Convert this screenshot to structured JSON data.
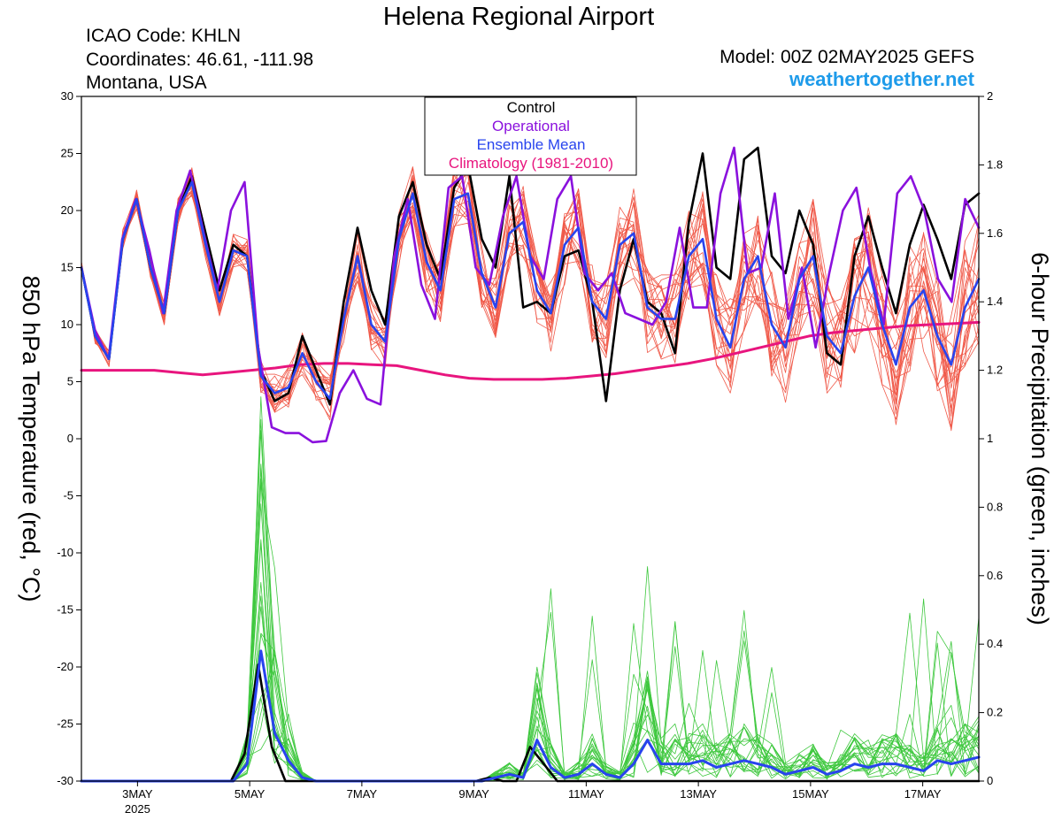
{
  "chart_data": {
    "type": "line",
    "title": "Helena Regional Airport",
    "info_left": [
      "ICAO Code: KHLN",
      "Coordinates: 46.61, -111.98",
      "Montana, USA"
    ],
    "info_right": [
      "Model: 00Z 02MAY2025 GEFS"
    ],
    "brand": "weathertogether.net",
    "y_left_label": "850 hPa Temperature (red, °C)",
    "y_right_label": "6-hour Precipitation (green, inches)",
    "y_left_range": [
      -30,
      30
    ],
    "y_right_range": [
      0,
      2
    ],
    "y_left_ticks": [
      "30",
      "25",
      "20",
      "15",
      "10",
      "5",
      "0",
      "-5",
      "-10",
      "-15",
      "-20",
      "-25",
      "-30"
    ],
    "y_right_ticks": [
      "2",
      "1.8",
      "1.6",
      "1.4",
      "1.2",
      "1",
      "0.8",
      "0.6",
      "0.4",
      "0.2",
      "0"
    ],
    "x_unit": "days since 2025-05-02 00Z",
    "x_range": [
      0,
      16
    ],
    "x_ticks": [
      {
        "x": 1,
        "label": "3MAY",
        "sub": "2025"
      },
      {
        "x": 3,
        "label": "5MAY",
        "sub": ""
      },
      {
        "x": 5,
        "label": "7MAY",
        "sub": ""
      },
      {
        "x": 7,
        "label": "9MAY",
        "sub": ""
      },
      {
        "x": 9,
        "label": "11MAY",
        "sub": ""
      },
      {
        "x": 11,
        "label": "13MAY",
        "sub": ""
      },
      {
        "x": 13,
        "label": "15MAY",
        "sub": ""
      },
      {
        "x": 15,
        "label": "17MAY",
        "sub": ""
      }
    ],
    "grid": false,
    "legend_position": "top-center",
    "legend": [
      {
        "name": "Control",
        "color": "#000000"
      },
      {
        "name": "Operational",
        "color": "#8a11dd"
      },
      {
        "name": "Ensemble Mean",
        "color": "#2844ee"
      },
      {
        "name": "Climatology (1981-2010)",
        "color": "#e8157e"
      }
    ],
    "colors": {
      "control": "#000000",
      "operational": "#8a11dd",
      "mean": "#2844ee",
      "climatology": "#e8157e",
      "member_temp": "#f05a4a",
      "member_precip": "#3ec83e"
    },
    "temperature": {
      "control": [
        15,
        9,
        7,
        17.5,
        21,
        15,
        11,
        20,
        23,
        18,
        13,
        17,
        16,
        6,
        3.3,
        4,
        9,
        6,
        3,
        12,
        18.5,
        13,
        10,
        19.5,
        22.5,
        17,
        14,
        22,
        24,
        17.5,
        15,
        23,
        11.5,
        12,
        11,
        16,
        16.5,
        12,
        3.3,
        13,
        17.5,
        12,
        11,
        7.5,
        19,
        25,
        15,
        14,
        24.5,
        25.5,
        16,
        14.5,
        20,
        17,
        7.5,
        6.5,
        16,
        19.5,
        15,
        11,
        17,
        20.5,
        17.5,
        14,
        20.5,
        21.5
      ],
      "operational": [
        15,
        9.5,
        7,
        17.5,
        21,
        16.5,
        11,
        20,
        23.5,
        18,
        13,
        20,
        22.5,
        8,
        1,
        0.5,
        0.5,
        -0.3,
        -0.2,
        4,
        6,
        3.5,
        3,
        16,
        21,
        13.5,
        10.5,
        22,
        23,
        15,
        13.5,
        19.5,
        23,
        16,
        14,
        21,
        23,
        14.5,
        13,
        14.5,
        11,
        10.5,
        10,
        12,
        18.5,
        11.5,
        11.5,
        21.5,
        25.5,
        14.5,
        15,
        21.5,
        10.5,
        15,
        8,
        14.5,
        20,
        22,
        15,
        10,
        21.5,
        23,
        20,
        14,
        12,
        21,
        18.5
      ],
      "mean": [
        15,
        9,
        7,
        17.5,
        21,
        15,
        11,
        20,
        22.5,
        17,
        12,
        16.5,
        16,
        5.5,
        4,
        4.5,
        7.5,
        5,
        3.5,
        10.5,
        16,
        10,
        8.5,
        17.5,
        21.5,
        15.5,
        13,
        21,
        21.5,
        14.5,
        11.5,
        18,
        19,
        13,
        11,
        17,
        18.5,
        12,
        10.5,
        17,
        18,
        11.5,
        10.5,
        10.5,
        16,
        17.5,
        10.5,
        8,
        14,
        16,
        10,
        8,
        14,
        16,
        9,
        7.5,
        12.5,
        15,
        10,
        6.5,
        11.5,
        13,
        9,
        6.5,
        11.5,
        14
      ],
      "climatology": [
        6,
        6,
        6,
        6,
        5.8,
        5.6,
        5.8,
        6,
        6.2,
        6.5,
        6.6,
        6.6,
        6.5,
        6.4,
        6,
        5.6,
        5.3,
        5.2,
        5.2,
        5.2,
        5.3,
        5.5,
        5.7,
        6,
        6.3,
        6.6,
        7,
        7.5,
        8,
        8.5,
        9,
        9.3,
        9.5,
        9.7,
        9.9,
        10,
        10.1,
        10.2
      ]
    },
    "precipitation": {
      "control": [
        0,
        0,
        0,
        0,
        0,
        0,
        0,
        0,
        0,
        0,
        0,
        0,
        0.08,
        0.34,
        0.1,
        0,
        0,
        0,
        0,
        0,
        0,
        0,
        0,
        0,
        0,
        0,
        0,
        0,
        0,
        0,
        0.01,
        0,
        0,
        0.1,
        0.05,
        0,
        0,
        0,
        0,
        0,
        0,
        0,
        0,
        0,
        0,
        0,
        0,
        0,
        0,
        0,
        0,
        0,
        0,
        0,
        0,
        0,
        0,
        0,
        0,
        0,
        0,
        0,
        0,
        0,
        0,
        0,
        0
      ],
      "mean": [
        0,
        0,
        0,
        0,
        0,
        0,
        0,
        0,
        0,
        0,
        0,
        0,
        0.05,
        0.38,
        0.14,
        0.06,
        0.01,
        0,
        0,
        0,
        0,
        0,
        0,
        0,
        0,
        0,
        0,
        0,
        0,
        0,
        0.01,
        0.02,
        0.01,
        0.12,
        0.04,
        0.01,
        0.02,
        0.05,
        0.02,
        0.01,
        0.05,
        0.12,
        0.05,
        0.05,
        0.05,
        0.06,
        0.04,
        0.05,
        0.06,
        0.05,
        0.04,
        0.02,
        0.03,
        0.04,
        0.02,
        0.03,
        0.05,
        0.04,
        0.05,
        0.05,
        0.04,
        0.03,
        0.06,
        0.05,
        0.06,
        0.07
      ]
    }
  }
}
